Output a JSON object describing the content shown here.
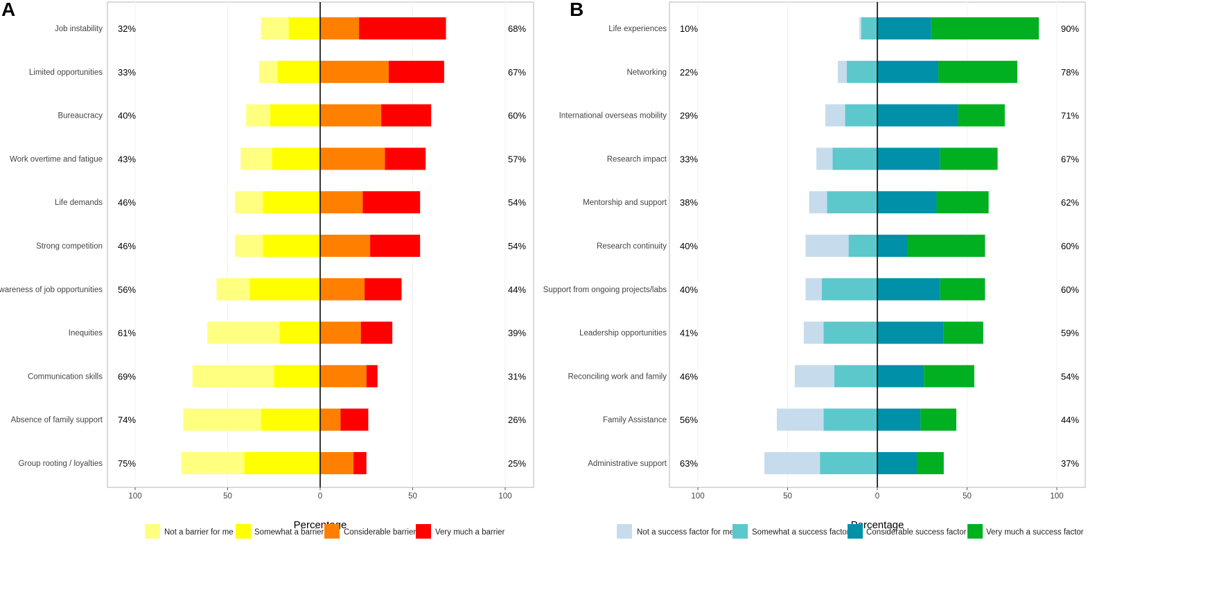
{
  "chart_data": [
    {
      "panel": "A",
      "type": "bar",
      "orientation": "horizontal",
      "stacking": "diverging",
      "xlabel": "Percentage",
      "xticks": [
        "100",
        "50",
        "0",
        "50",
        "100"
      ],
      "xlim": [
        -100,
        100
      ],
      "categories": [
        "Job instability",
        "Limited opportunities",
        "Bureaucracy",
        "Work overtime and fatigue",
        "Life demands",
        "Strong competition",
        "Awareness of job opportunities",
        "Inequities",
        "Communication skills",
        "Absence of family support",
        "Group rooting / loyalties"
      ],
      "left_totals": [
        "32%",
        "33%",
        "40%",
        "43%",
        "46%",
        "46%",
        "56%",
        "61%",
        "69%",
        "74%",
        "75%"
      ],
      "right_totals": [
        "68%",
        "67%",
        "60%",
        "57%",
        "54%",
        "54%",
        "44%",
        "39%",
        "31%",
        "26%",
        "25%"
      ],
      "series": [
        {
          "name": "Not a barrier for me",
          "side": "negative",
          "order": 2,
          "color": "#ffff80",
          "values": [
            15,
            10,
            13,
            17,
            15,
            15,
            18,
            39,
            44,
            42,
            34
          ]
        },
        {
          "name": "Somewhat a barrier",
          "side": "negative",
          "order": 1,
          "color": "#ffff00",
          "values": [
            17,
            23,
            27,
            26,
            31,
            31,
            38,
            22,
            25,
            32,
            41
          ]
        },
        {
          "name": "Considerable barrier",
          "side": "positive",
          "order": 1,
          "color": "#ff8000",
          "values": [
            21,
            37,
            33,
            35,
            23,
            27,
            24,
            22,
            25,
            11,
            18
          ]
        },
        {
          "name": "Very much a barrier",
          "side": "positive",
          "order": 2,
          "color": "#ff0000",
          "values": [
            47,
            30,
            27,
            22,
            31,
            27,
            20,
            17,
            6,
            15,
            7
          ]
        }
      ]
    },
    {
      "panel": "B",
      "type": "bar",
      "orientation": "horizontal",
      "stacking": "diverging",
      "xlabel": "Percentage",
      "xticks": [
        "100",
        "50",
        "0",
        "50",
        "100"
      ],
      "xlim": [
        -100,
        100
      ],
      "categories": [
        "Life experiences",
        "Networking",
        "International overseas mobility",
        "Research impact",
        "Mentorship and support",
        "Research continuity",
        "Support from ongoing projects/labs",
        "Leadership opportunities",
        "Reconciling work and family",
        "Family Assistance",
        "Administrative support"
      ],
      "left_totals": [
        "10%",
        "22%",
        "29%",
        "33%",
        "38%",
        "40%",
        "40%",
        "41%",
        "46%",
        "56%",
        "63%"
      ],
      "right_totals": [
        "90%",
        "78%",
        "71%",
        "67%",
        "62%",
        "60%",
        "60%",
        "59%",
        "54%",
        "44%",
        "37%"
      ],
      "series": [
        {
          "name": "Not a success factor for me",
          "side": "negative",
          "order": 2,
          "color": "#c6dcec",
          "values": [
            1,
            5,
            11,
            9,
            10,
            24,
            9,
            11,
            22,
            26,
            31
          ]
        },
        {
          "name": "Somewhat a success factor",
          "side": "negative",
          "order": 1,
          "color": "#5cc8cc",
          "values": [
            9,
            17,
            18,
            25,
            28,
            16,
            31,
            30,
            24,
            30,
            32
          ]
        },
        {
          "name": "Considerable success factor",
          "side": "positive",
          "order": 1,
          "color": "#0090a8",
          "values": [
            30,
            34,
            45,
            35,
            33,
            17,
            35,
            37,
            26,
            24,
            22
          ]
        },
        {
          "name": "Very much a success factor",
          "side": "positive",
          "order": 2,
          "color": "#00b020",
          "values": [
            60,
            44,
            26,
            32,
            29,
            43,
            25,
            22,
            28,
            20,
            15
          ]
        }
      ]
    }
  ]
}
